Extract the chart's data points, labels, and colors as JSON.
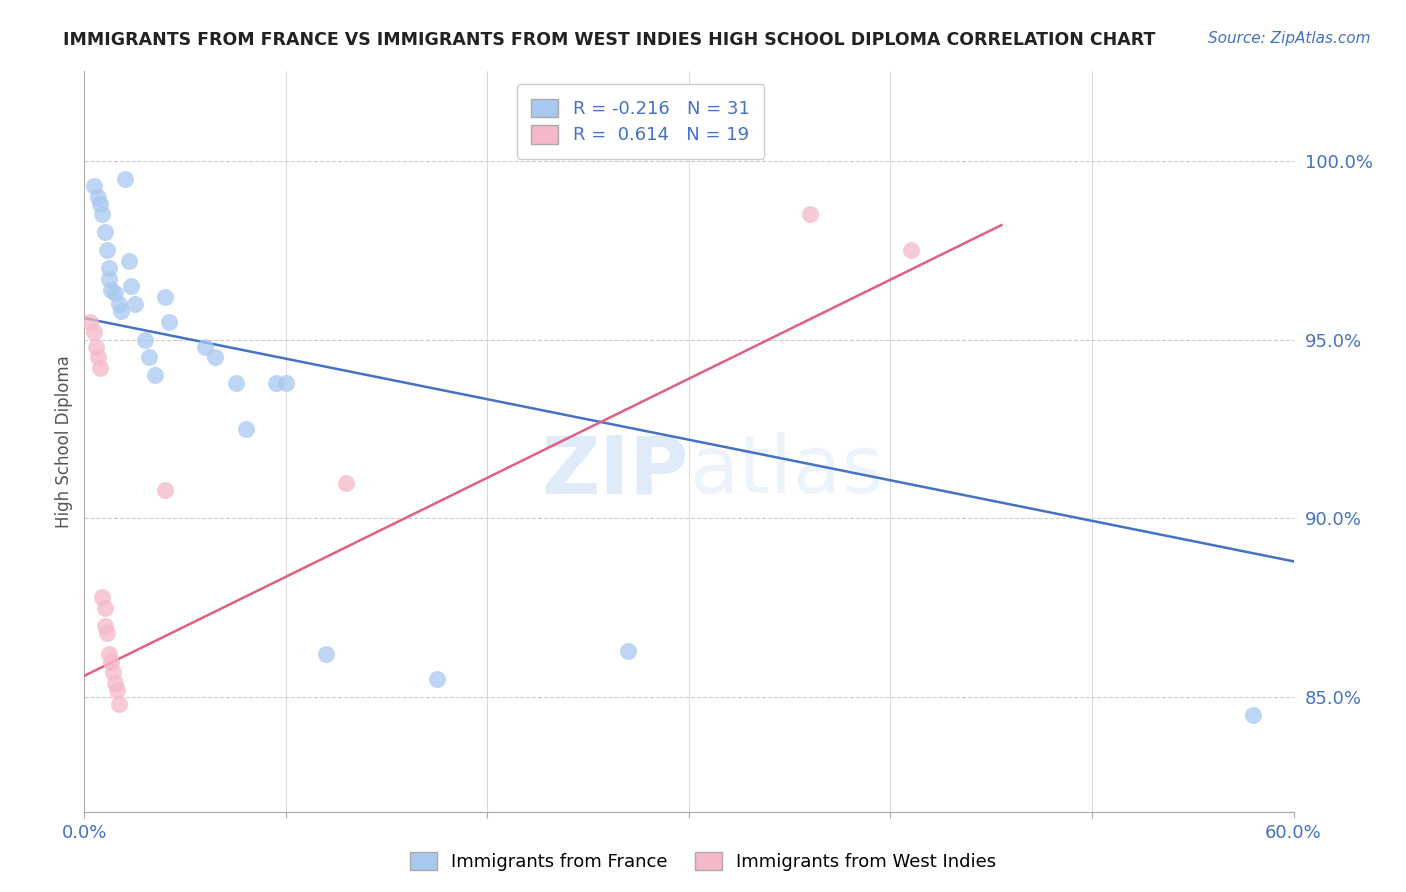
{
  "title": "IMMIGRANTS FROM FRANCE VS IMMIGRANTS FROM WEST INDIES HIGH SCHOOL DIPLOMA CORRELATION CHART",
  "source": "Source: ZipAtlas.com",
  "ylabel": "High School Diploma",
  "ytick_labels": [
    "100.0%",
    "95.0%",
    "90.0%",
    "85.0%"
  ],
  "ytick_values": [
    1.0,
    0.95,
    0.9,
    0.85
  ],
  "xlim": [
    0.0,
    0.6
  ],
  "ylim": [
    0.818,
    1.025
  ],
  "blue_R": "-0.216",
  "blue_N": "31",
  "pink_R": "0.614",
  "pink_N": "19",
  "blue_color": "#A8C8F0",
  "pink_color": "#F5B8C8",
  "blue_line_color": "#4472C4",
  "pink_line_color": "#E06080",
  "blue_points_x": [
    0.005,
    0.007,
    0.008,
    0.009,
    0.01,
    0.011,
    0.012,
    0.012,
    0.013,
    0.015,
    0.017,
    0.018,
    0.02,
    0.022,
    0.023,
    0.025,
    0.03,
    0.032,
    0.035,
    0.04,
    0.042,
    0.06,
    0.065,
    0.075,
    0.08,
    0.095,
    0.1,
    0.12,
    0.175,
    0.27,
    0.58
  ],
  "blue_points_y": [
    0.993,
    0.99,
    0.988,
    0.985,
    0.98,
    0.975,
    0.97,
    0.967,
    0.964,
    0.963,
    0.96,
    0.958,
    0.995,
    0.972,
    0.965,
    0.96,
    0.95,
    0.945,
    0.94,
    0.962,
    0.955,
    0.948,
    0.945,
    0.938,
    0.925,
    0.938,
    0.938,
    0.862,
    0.855,
    0.863,
    0.845
  ],
  "pink_points_x": [
    0.003,
    0.005,
    0.006,
    0.007,
    0.008,
    0.009,
    0.01,
    0.01,
    0.011,
    0.012,
    0.013,
    0.014,
    0.015,
    0.016,
    0.017,
    0.04,
    0.13,
    0.36,
    0.41
  ],
  "pink_points_y": [
    0.955,
    0.952,
    0.948,
    0.945,
    0.942,
    0.878,
    0.875,
    0.87,
    0.868,
    0.862,
    0.86,
    0.857,
    0.854,
    0.852,
    0.848,
    0.908,
    0.91,
    0.985,
    0.975
  ],
  "blue_line_x": [
    0.0,
    0.6
  ],
  "blue_line_y": [
    0.956,
    0.888
  ],
  "pink_line_x": [
    0.0,
    0.455
  ],
  "pink_line_y": [
    0.856,
    0.982
  ],
  "watermark_zip": "ZIP",
  "watermark_atlas": "atlas",
  "background_color": "#ffffff",
  "grid_color": "#cccccc"
}
